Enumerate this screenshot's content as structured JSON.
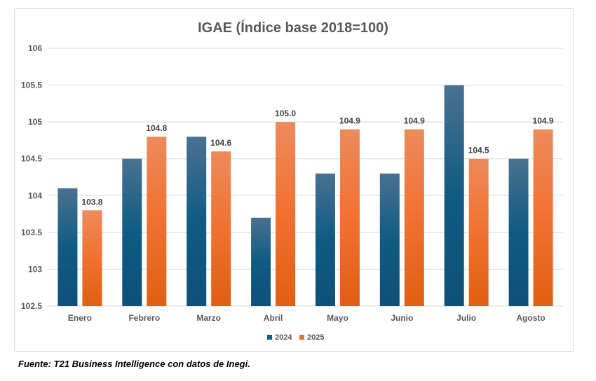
{
  "chart_data": {
    "type": "bar",
    "title": "IGAE (Índice base 2018=100)",
    "categories": [
      "Enero",
      "Febrero",
      "Marzo",
      "Abril",
      "Mayo",
      "Junio",
      "Julio",
      "Agosto"
    ],
    "series": [
      {
        "name": "2024",
        "values": [
          104.1,
          104.5,
          104.8,
          103.7,
          104.3,
          104.3,
          105.5,
          104.5
        ],
        "color": "#155e86",
        "show_labels": false
      },
      {
        "name": "2025",
        "values": [
          103.8,
          104.8,
          104.6,
          105.0,
          104.9,
          104.9,
          104.5,
          104.9
        ],
        "color": "#ee6f2d",
        "show_labels": true
      }
    ],
    "ylim": [
      102.5,
      106
    ],
    "yticks": [
      "102.5",
      "103",
      "103.5",
      "104",
      "104.5",
      "105",
      "105.5",
      "106"
    ],
    "grid": true,
    "legend": "bottom",
    "xlabel": "",
    "ylabel": ""
  },
  "source": "Fuente: T21 Business Intelligence con datos de Inegi."
}
